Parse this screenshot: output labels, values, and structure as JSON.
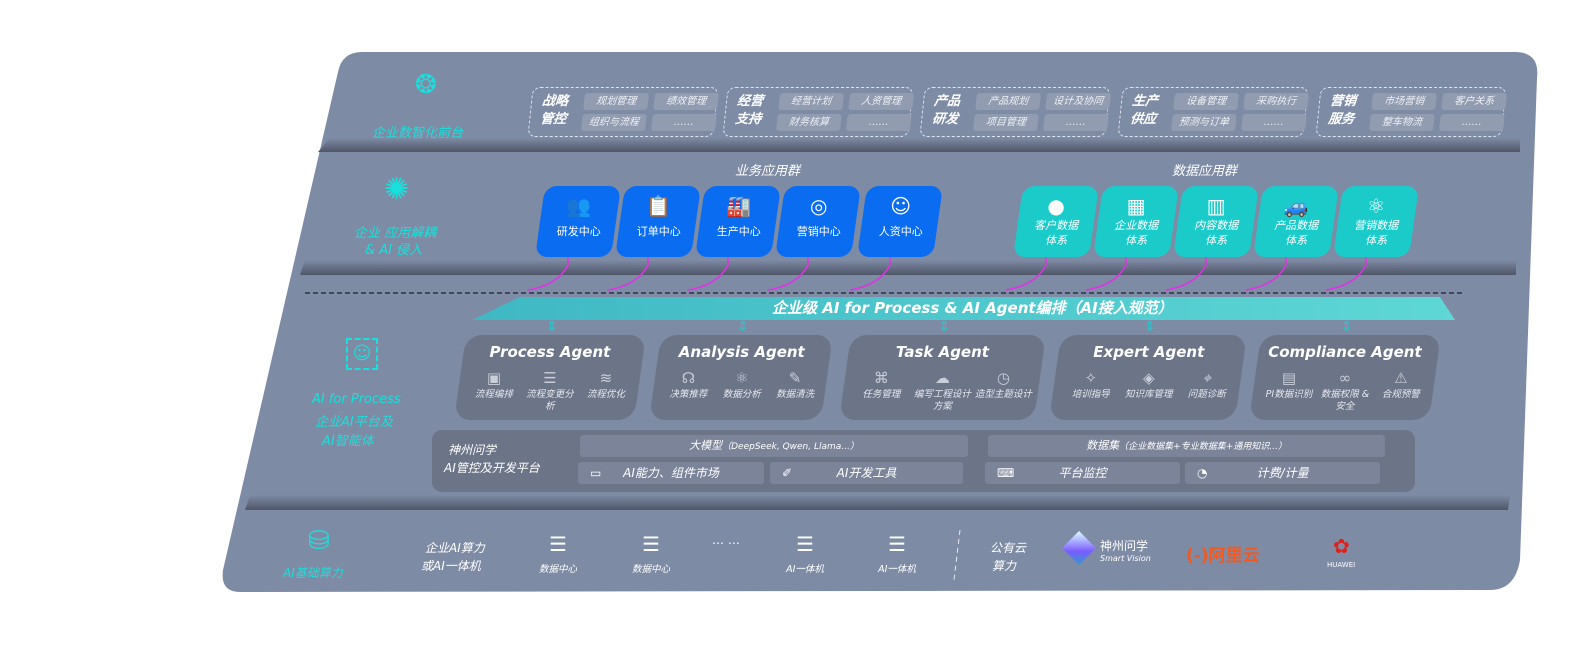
{
  "colors": {
    "panel": "#7e8ba5",
    "accent_teal": "#19e0dc",
    "business_blue": "#0a6cf0",
    "data_teal": "#1bcbc9",
    "arrow_magenta": "#e030e8",
    "agent_card": "#6c7487"
  },
  "front": {
    "label": "企业数智化前台",
    "icon": "brain-icon",
    "groups": [
      {
        "title": "战略管控",
        "items": [
          "规划管理",
          "绩效管理",
          "组织与流程",
          "……"
        ]
      },
      {
        "title": "经营支持",
        "items": [
          "经营计划",
          "人资管理",
          "财务核算",
          "……"
        ]
      },
      {
        "title": "产品研发",
        "items": [
          "产品规划",
          "设计及协同",
          "项目管理",
          "……"
        ]
      },
      {
        "title": "生产供应",
        "items": [
          "设备管理",
          "采购执行",
          "预测与订单",
          "……"
        ]
      },
      {
        "title": "营销服务",
        "items": [
          "市场营销",
          "客户关系",
          "整车物流",
          "……"
        ]
      }
    ]
  },
  "apps": {
    "label_line1": "企业 应用解耦",
    "label_line2": "& AI 侵入",
    "icon": "molecule-icon",
    "business_title": "业务应用群",
    "business": [
      {
        "label": "研发中心",
        "icon": "users-icon"
      },
      {
        "label": "订单中心",
        "icon": "clipboard-icon"
      },
      {
        "label": "生产中心",
        "icon": "factory-icon"
      },
      {
        "label": "营销中心",
        "icon": "target-icon"
      },
      {
        "label": "人资中心",
        "icon": "person-icon"
      }
    ],
    "data_title": "数据应用群",
    "data": [
      {
        "l1": "客户数据",
        "l2": "体系",
        "icon": "user-icon"
      },
      {
        "l1": "企业数据",
        "l2": "体系",
        "icon": "building-icon"
      },
      {
        "l1": "内容数据",
        "l2": "体系",
        "icon": "books-icon"
      },
      {
        "l1": "产品数据",
        "l2": "体系",
        "icon": "car-icon"
      },
      {
        "l1": "营销数据",
        "l2": "体系",
        "icon": "atom-icon"
      }
    ]
  },
  "ai": {
    "banner": "企业级 AI for Process & AI Agent编排（AI接入规范）",
    "label_line1": "AI for Process",
    "label_line2": "企业AI平台及",
    "label_line3": "AI智能体",
    "icon": "face-scan-icon",
    "agents": [
      {
        "name": "Process Agent",
        "features": [
          {
            "label": "流程编排",
            "icon": "chart-icon"
          },
          {
            "label": "流程变更分析",
            "icon": "list-icon"
          },
          {
            "label": "流程优化",
            "icon": "layers-icon"
          }
        ]
      },
      {
        "name": "Analysis Agent",
        "features": [
          {
            "label": "决策推荐",
            "icon": "head-icon"
          },
          {
            "label": "数据分析",
            "icon": "atom-icon"
          },
          {
            "label": "数据清洗",
            "icon": "clean-icon"
          }
        ]
      },
      {
        "name": "Task Agent",
        "features": [
          {
            "label": "任务管理",
            "icon": "network-icon"
          },
          {
            "label": "编写工程设计方案",
            "icon": "cloud-icon"
          },
          {
            "label": "造型主题设计",
            "icon": "doc-clock-icon"
          }
        ]
      },
      {
        "name": "Expert Agent",
        "features": [
          {
            "label": "培训指导",
            "icon": "wand-icon"
          },
          {
            "label": "知识库管理",
            "icon": "stack-icon"
          },
          {
            "label": "问题诊断",
            "icon": "diagnose-icon"
          }
        ]
      },
      {
        "name": "Compliance Agent",
        "features": [
          {
            "label": "PI数据识别",
            "icon": "id-card-icon"
          },
          {
            "label": "数据权限 & 安全",
            "icon": "link-icon"
          },
          {
            "label": "合规预警",
            "icon": "alert-box-icon"
          }
        ]
      }
    ],
    "platform": {
      "name_line1": "神州问学",
      "name_line2": "AI管控及开发平台",
      "model_title": "大模型",
      "model_sub": "（DeepSeek, Qwen, Llama...）",
      "dataset_title": "数据集",
      "dataset_sub": "（企业数据集+专业数据集+通用知识...）",
      "tools": [
        {
          "label": "AI能力、组件市场",
          "icon": "market-icon"
        },
        {
          "label": "AI开发工具",
          "icon": "dev-tool-icon"
        },
        {
          "label": "平台监控",
          "icon": "monitor-icon"
        },
        {
          "label": "计费/计量",
          "icon": "gauge-icon"
        }
      ]
    }
  },
  "infra": {
    "label": "AI基础算力",
    "icon": "database-icon",
    "enterprise_line1": "企业AI算力",
    "enterprise_line2": "或AI一体机",
    "servers": [
      "数据中心",
      "数据中心",
      "AI一体机",
      "AI一体机"
    ],
    "ellipsis": "… …",
    "public_line1": "公有云",
    "public_line2": "算力",
    "vendors": {
      "smart_vision_cn": "神州问学",
      "smart_vision_en": "Smart Vision",
      "aliyun": "阿里云",
      "huawei": "HUAWEI"
    }
  }
}
